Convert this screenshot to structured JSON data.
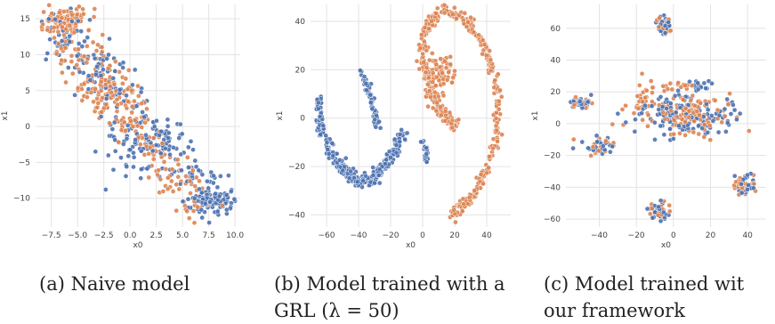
{
  "colors": {
    "blue": "#4c72b0",
    "orange": "#dd8452",
    "grid": "#e3e3e3"
  },
  "captions": [
    {
      "line1": "(a) Naive model",
      "line2": ""
    },
    {
      "line1": "(b) Model trained with a",
      "line2": "GRL (λ = 50)"
    },
    {
      "line1": "(c) Model trained wit",
      "line2": "our framework"
    }
  ],
  "chart_data": [
    {
      "type": "scatter",
      "xlabel": "x0",
      "ylabel": "x1",
      "xlim": [
        -9,
        10.5
      ],
      "ylim": [
        -14,
        17
      ],
      "xticks": [
        -7.5,
        -5.0,
        -2.5,
        0.0,
        2.5,
        5.0,
        7.5,
        10.0
      ],
      "xtick_labels": [
        "−7.5",
        "−5.0",
        "−2.5",
        "0.0",
        "2.5",
        "5.0",
        "7.5",
        "10.0"
      ],
      "yticks": [
        -10,
        -5,
        0,
        5,
        10,
        15
      ],
      "ytick_labels": [
        "−10",
        "−5",
        "0",
        "5",
        "10",
        "15"
      ],
      "grid": true,
      "series": [
        {
          "color": "blue",
          "clusters": [
            {
              "shape": "line",
              "x0": -7,
              "y0": 14,
              "x1": 9,
              "y1": -11,
              "sx": 1.0,
              "sy": 1.6,
              "n": 240
            },
            {
              "shape": "blob",
              "cx": 7.5,
              "cy": -10.5,
              "sx": 1.0,
              "sy": 0.8,
              "n": 90
            },
            {
              "shape": "blob",
              "cx": 0,
              "cy": -3,
              "sx": 2.0,
              "sy": 2.0,
              "n": 50
            }
          ]
        },
        {
          "color": "orange",
          "clusters": [
            {
              "shape": "line",
              "x0": -7.5,
              "y0": 15,
              "x1": 7,
              "y1": -12,
              "sx": 1.0,
              "sy": 1.6,
              "n": 250
            },
            {
              "shape": "blob",
              "cx": -6,
              "cy": 14.5,
              "sx": 1.0,
              "sy": 1.0,
              "n": 90
            },
            {
              "shape": "blob",
              "cx": -2,
              "cy": 5,
              "sx": 1.5,
              "sy": 1.5,
              "n": 50
            }
          ]
        }
      ]
    },
    {
      "type": "scatter",
      "xlabel": "x0",
      "ylabel": "x1",
      "xlim": [
        -70,
        55
      ],
      "ylim": [
        -45,
        47
      ],
      "xticks": [
        -60,
        -40,
        -20,
        0,
        20,
        40
      ],
      "xtick_labels": [
        "−60",
        "−40",
        "−20",
        "0",
        "20",
        "40"
      ],
      "yticks": [
        -40,
        -20,
        0,
        20,
        40
      ],
      "ytick_labels": [
        "−40",
        "−20",
        "0",
        "20",
        "40"
      ],
      "grid": true,
      "series": [
        {
          "color": "blue",
          "clusters": [
            {
              "shape": "path",
              "pts": [
                [
                  -65,
                  8
                ],
                [
                  -63,
                  -5
                ],
                [
                  -57,
                  -15
                ],
                [
                  -48,
                  -22
                ],
                [
                  -40,
                  -26
                ],
                [
                  -32,
                  -26
                ],
                [
                  -25,
                  -20
                ],
                [
                  -17,
                  -13
                ],
                [
                  -12,
                  -6
                ]
              ],
              "s": 1.4,
              "n": 300
            },
            {
              "shape": "path",
              "pts": [
                [
                  -38,
                  20
                ],
                [
                  -34,
                  12
                ],
                [
                  -30,
                  2
                ],
                [
                  -27,
                  -5
                ]
              ],
              "s": 0.9,
              "n": 60
            },
            {
              "shape": "path",
              "pts": [
                [
                  0,
                  -9
                ],
                [
                  2,
                  -14
                ],
                [
                  3,
                  -18
                ]
              ],
              "s": 0.7,
              "n": 20
            }
          ]
        },
        {
          "color": "orange",
          "clusters": [
            {
              "shape": "path",
              "pts": [
                [
                  12,
                  45
                ],
                [
                  28,
                  40
                ],
                [
                  40,
                  28
                ],
                [
                  47,
                  10
                ],
                [
                  46,
                  -8
                ],
                [
                  40,
                  -22
                ],
                [
                  30,
                  -33
                ],
                [
                  18,
                  -40
                ]
              ],
              "s": 1.2,
              "n": 280
            },
            {
              "shape": "path",
              "pts": [
                [
                  10,
                  43
                ],
                [
                  2,
                  38
                ],
                [
                  0,
                  28
                ],
                [
                  2,
                  18
                ],
                [
                  5,
                  10
                ],
                [
                  10,
                  5
                ],
                [
                  15,
                  0
                ],
                [
                  20,
                  -3
                ]
              ],
              "s": 1.4,
              "n": 200
            },
            {
              "shape": "blob",
              "cx": 12,
              "cy": 18,
              "sx": 4,
              "sy": 4,
              "n": 60
            }
          ]
        }
      ]
    },
    {
      "type": "scatter",
      "xlabel": "x0",
      "ylabel": "x1",
      "xlim": [
        -58,
        50
      ],
      "ylim": [
        -65,
        75
      ],
      "xticks": [
        -40,
        -20,
        0,
        20,
        40
      ],
      "xtick_labels": [
        "−40",
        "−20",
        "0",
        "20",
        "40"
      ],
      "yticks": [
        -60,
        -40,
        -20,
        0,
        20,
        40,
        60
      ],
      "ytick_labels": [
        "−60",
        "−40",
        "−20",
        "0",
        "20",
        "40",
        "60"
      ],
      "grid": true,
      "series": [
        {
          "color": "blue",
          "clusters": [
            {
              "shape": "blob",
              "cx": -5,
              "cy": 62,
              "sx": 2,
              "sy": 3,
              "n": 30
            },
            {
              "shape": "blob",
              "cx": -50,
              "cy": 13,
              "sx": 3,
              "sy": 2,
              "n": 30
            },
            {
              "shape": "blob",
              "cx": 5,
              "cy": 5,
              "sx": 14,
              "sy": 6,
              "n": 140
            },
            {
              "shape": "blob",
              "cx": -40,
              "cy": -14,
              "sx": 4,
              "sy": 3,
              "n": 25
            },
            {
              "shape": "blob",
              "cx": 38,
              "cy": -39,
              "sx": 3,
              "sy": 3,
              "n": 30
            },
            {
              "shape": "blob",
              "cx": -8,
              "cy": -55,
              "sx": 3,
              "sy": 3,
              "n": 30
            },
            {
              "shape": "blob",
              "cx": 15,
              "cy": 24,
              "sx": 4,
              "sy": 2,
              "n": 15
            }
          ]
        },
        {
          "color": "orange",
          "clusters": [
            {
              "shape": "blob",
              "cx": -5,
              "cy": 62,
              "sx": 2,
              "sy": 3,
              "n": 20
            },
            {
              "shape": "blob",
              "cx": -50,
              "cy": 13,
              "sx": 3,
              "sy": 2,
              "n": 20
            },
            {
              "shape": "blob",
              "cx": 5,
              "cy": 5,
              "sx": 14,
              "sy": 6,
              "n": 130
            },
            {
              "shape": "blob",
              "cx": -40,
              "cy": -14,
              "sx": 4,
              "sy": 3,
              "n": 20
            },
            {
              "shape": "blob",
              "cx": 38,
              "cy": -39,
              "sx": 3,
              "sy": 3,
              "n": 25
            },
            {
              "shape": "blob",
              "cx": -8,
              "cy": -55,
              "sx": 3,
              "sy": 3,
              "n": 25
            },
            {
              "shape": "blob",
              "cx": 0,
              "cy": 24,
              "sx": 4,
              "sy": 2,
              "n": 15
            },
            {
              "shape": "blob",
              "cx": -15,
              "cy": 20,
              "sx": 2,
              "sy": 5,
              "n": 20
            }
          ]
        }
      ]
    }
  ]
}
